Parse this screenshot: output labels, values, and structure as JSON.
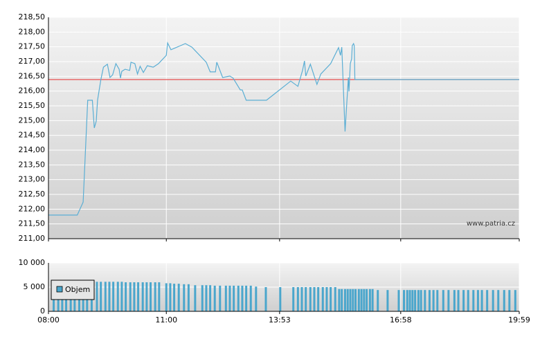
{
  "chart_data": [
    {
      "type": "line",
      "x": [
        0,
        44,
        53,
        60,
        67,
        70,
        73,
        75,
        80,
        84,
        90,
        94,
        98,
        103,
        108,
        110,
        112,
        117,
        124,
        126,
        132,
        136,
        140,
        145,
        151,
        160,
        168,
        180,
        182,
        187,
        209,
        219,
        241,
        247,
        255,
        257,
        266,
        277,
        282,
        293,
        296,
        302,
        333,
        370,
        381,
        388,
        391,
        393,
        400,
        410,
        416,
        431,
        443,
        446,
        448,
        453,
        458,
        459,
        461,
        463,
        464,
        466,
        467,
        468,
        719
      ],
      "series": [
        {
          "color": "#5aaed4",
          "values": [
            211.8,
            211.8,
            212.24,
            215.69,
            215.69,
            214.75,
            214.98,
            215.69,
            216.39,
            216.81,
            216.91,
            216.46,
            216.55,
            216.93,
            216.74,
            216.44,
            216.67,
            216.74,
            216.7,
            216.98,
            216.93,
            216.58,
            216.84,
            216.63,
            216.86,
            216.81,
            216.93,
            217.21,
            217.63,
            217.4,
            217.61,
            217.49,
            216.98,
            216.65,
            216.65,
            216.98,
            216.46,
            216.51,
            216.44,
            216.04,
            216.04,
            215.69,
            215.69,
            216.34,
            216.16,
            216.7,
            217.02,
            216.51,
            216.91,
            216.23,
            216.58,
            216.93,
            217.47,
            217.21,
            217.49,
            214.63,
            216.46,
            215.99,
            216.93,
            217.09,
            217.54,
            217.61,
            217.54,
            216.39,
            216.39
          ]
        }
      ],
      "reference_line": {
        "value": 216.39,
        "color": "#e85050"
      },
      "xlim": [
        0,
        719
      ],
      "ylim": [
        211,
        218.5
      ],
      "yticks": [
        {
          "value": 211,
          "label": "211,00"
        },
        {
          "value": 211.5,
          "label": "211,50"
        },
        {
          "value": 212,
          "label": "212,00"
        },
        {
          "value": 212.5,
          "label": "212,50"
        },
        {
          "value": 213,
          "label": "213,00"
        },
        {
          "value": 213.5,
          "label": "213,50"
        },
        {
          "value": 214,
          "label": "214,00"
        },
        {
          "value": 214.5,
          "label": "214,50"
        },
        {
          "value": 215,
          "label": "215,00"
        },
        {
          "value": 215.5,
          "label": "215,50"
        },
        {
          "value": 216,
          "label": "216,00"
        },
        {
          "value": 216.5,
          "label": "216,50"
        },
        {
          "value": 217,
          "label": "217,00"
        },
        {
          "value": 217.5,
          "label": "217,50"
        },
        {
          "value": 218,
          "label": "218,00"
        },
        {
          "value": 218.5,
          "label": "218,50"
        }
      ],
      "grid": true,
      "watermark": "www.patria.cz"
    },
    {
      "type": "bar",
      "x": [
        8,
        15,
        21,
        27,
        34,
        40,
        47,
        53,
        59,
        66,
        74,
        80,
        87,
        93,
        99,
        106,
        112,
        118,
        125,
        131,
        137,
        144,
        150,
        156,
        163,
        169,
        180,
        186,
        192,
        199,
        207,
        214,
        224,
        235,
        241,
        247,
        254,
        262,
        271,
        277,
        283,
        290,
        296,
        302,
        309,
        317,
        332,
        354,
        374,
        381,
        387,
        393,
        400,
        406,
        412,
        419,
        425,
        431,
        438,
        444,
        448,
        453,
        457,
        461,
        465,
        469,
        474,
        478,
        482,
        486,
        491,
        495,
        503,
        518,
        535,
        543,
        548,
        552,
        556,
        560,
        565,
        569,
        575,
        582,
        588,
        594,
        603,
        611,
        620,
        626,
        634,
        641,
        649,
        656,
        662,
        670,
        679,
        687,
        696,
        704,
        713
      ],
      "series": [
        {
          "name": "Objem",
          "color": "#4aa6cc",
          "values": [
            6200,
            6200,
            6200,
            6200,
            6200,
            6200,
            6200,
            6200,
            6200,
            6200,
            6100,
            6100,
            6100,
            6100,
            6100,
            6100,
            6100,
            6000,
            6000,
            6000,
            6000,
            6000,
            6000,
            6000,
            6000,
            6000,
            5800,
            5800,
            5700,
            5700,
            5600,
            5600,
            5400,
            5400,
            5400,
            5400,
            5300,
            5300,
            5300,
            5300,
            5300,
            5300,
            5300,
            5300,
            5300,
            5100,
            5000,
            5000,
            5000,
            5000,
            5000,
            5000,
            5000,
            5000,
            5000,
            5000,
            5000,
            5000,
            5000,
            4600,
            4600,
            4600,
            4600,
            4600,
            4600,
            4600,
            4600,
            4600,
            4600,
            4600,
            4600,
            4600,
            4400,
            4400,
            4400,
            4400,
            4400,
            4400,
            4400,
            4400,
            4400,
            4400,
            4400,
            4400,
            4400,
            4400,
            4400,
            4400,
            4400,
            4400,
            4400,
            4400,
            4400,
            4400,
            4400,
            4400,
            4400,
            4400,
            4400,
            4400,
            4400
          ]
        }
      ],
      "xlim": [
        0,
        719
      ],
      "xticks": [
        {
          "value": 0,
          "label": "08:00"
        },
        {
          "value": 180,
          "label": "11:00"
        },
        {
          "value": 353,
          "label": "13:53"
        },
        {
          "value": 538,
          "label": "16:58"
        },
        {
          "value": 719,
          "label": "19:59"
        }
      ],
      "ylim": [
        0,
        10000
      ],
      "yticks": [
        0,
        {
          "value": 5000,
          "label": "5 000"
        },
        {
          "value": 10000,
          "label": "10 000"
        }
      ],
      "grid": true,
      "legend": "top-left"
    }
  ]
}
